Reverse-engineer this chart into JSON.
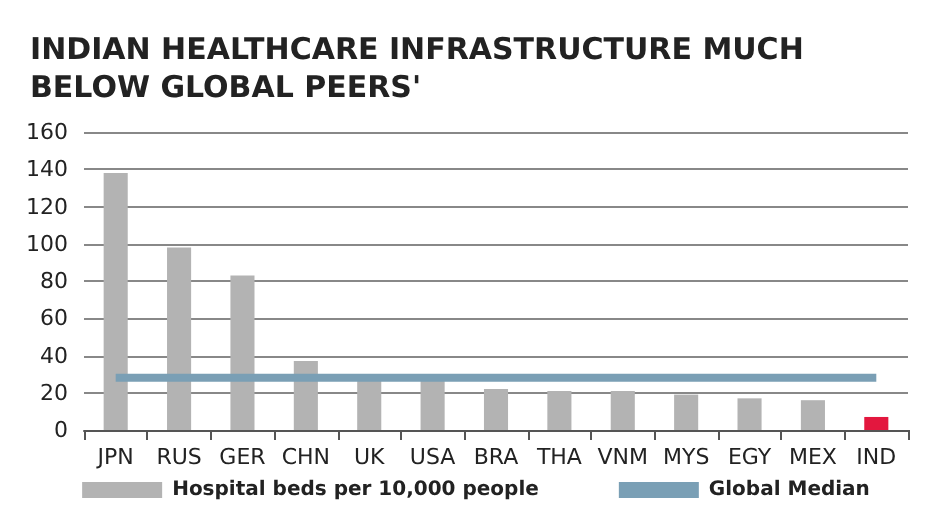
{
  "chart_data": {
    "type": "bar",
    "title": "INDIAN HEALTHCARE INFRASTRUCTURE MUCH\nBELOW GLOBAL PEERS'",
    "categories": [
      "JPN",
      "RUS",
      "GER",
      "CHN",
      "UK",
      "USA",
      "BRA",
      "THA",
      "VNM",
      "MYS",
      "EGY",
      "MEX",
      "IND"
    ],
    "series": [
      {
        "name": "Hospital beds per 10,000 people",
        "color": "#b3b3b3",
        "colors": [
          "#b3b3b3",
          "#b3b3b3",
          "#b3b3b3",
          "#b3b3b3",
          "#b3b3b3",
          "#b3b3b3",
          "#b3b3b3",
          "#b3b3b3",
          "#b3b3b3",
          "#b3b3b3",
          "#b3b3b3",
          "#b3b3b3",
          "#e3173e"
        ],
        "values": [
          138,
          98,
          83,
          37,
          29,
          29,
          22,
          21,
          21,
          19,
          17,
          16,
          7
        ]
      },
      {
        "name": "Global Median",
        "type": "line",
        "color": "#7a9fb5",
        "values": [
          28,
          28,
          28,
          28,
          28,
          28,
          28,
          28,
          28,
          28,
          28,
          28,
          28
        ]
      }
    ],
    "ylim": [
      0,
      160
    ],
    "yticks": [
      0,
      20,
      40,
      60,
      80,
      100,
      120,
      140,
      160
    ],
    "grid": "y",
    "legend": "bottom",
    "marker": "none"
  }
}
